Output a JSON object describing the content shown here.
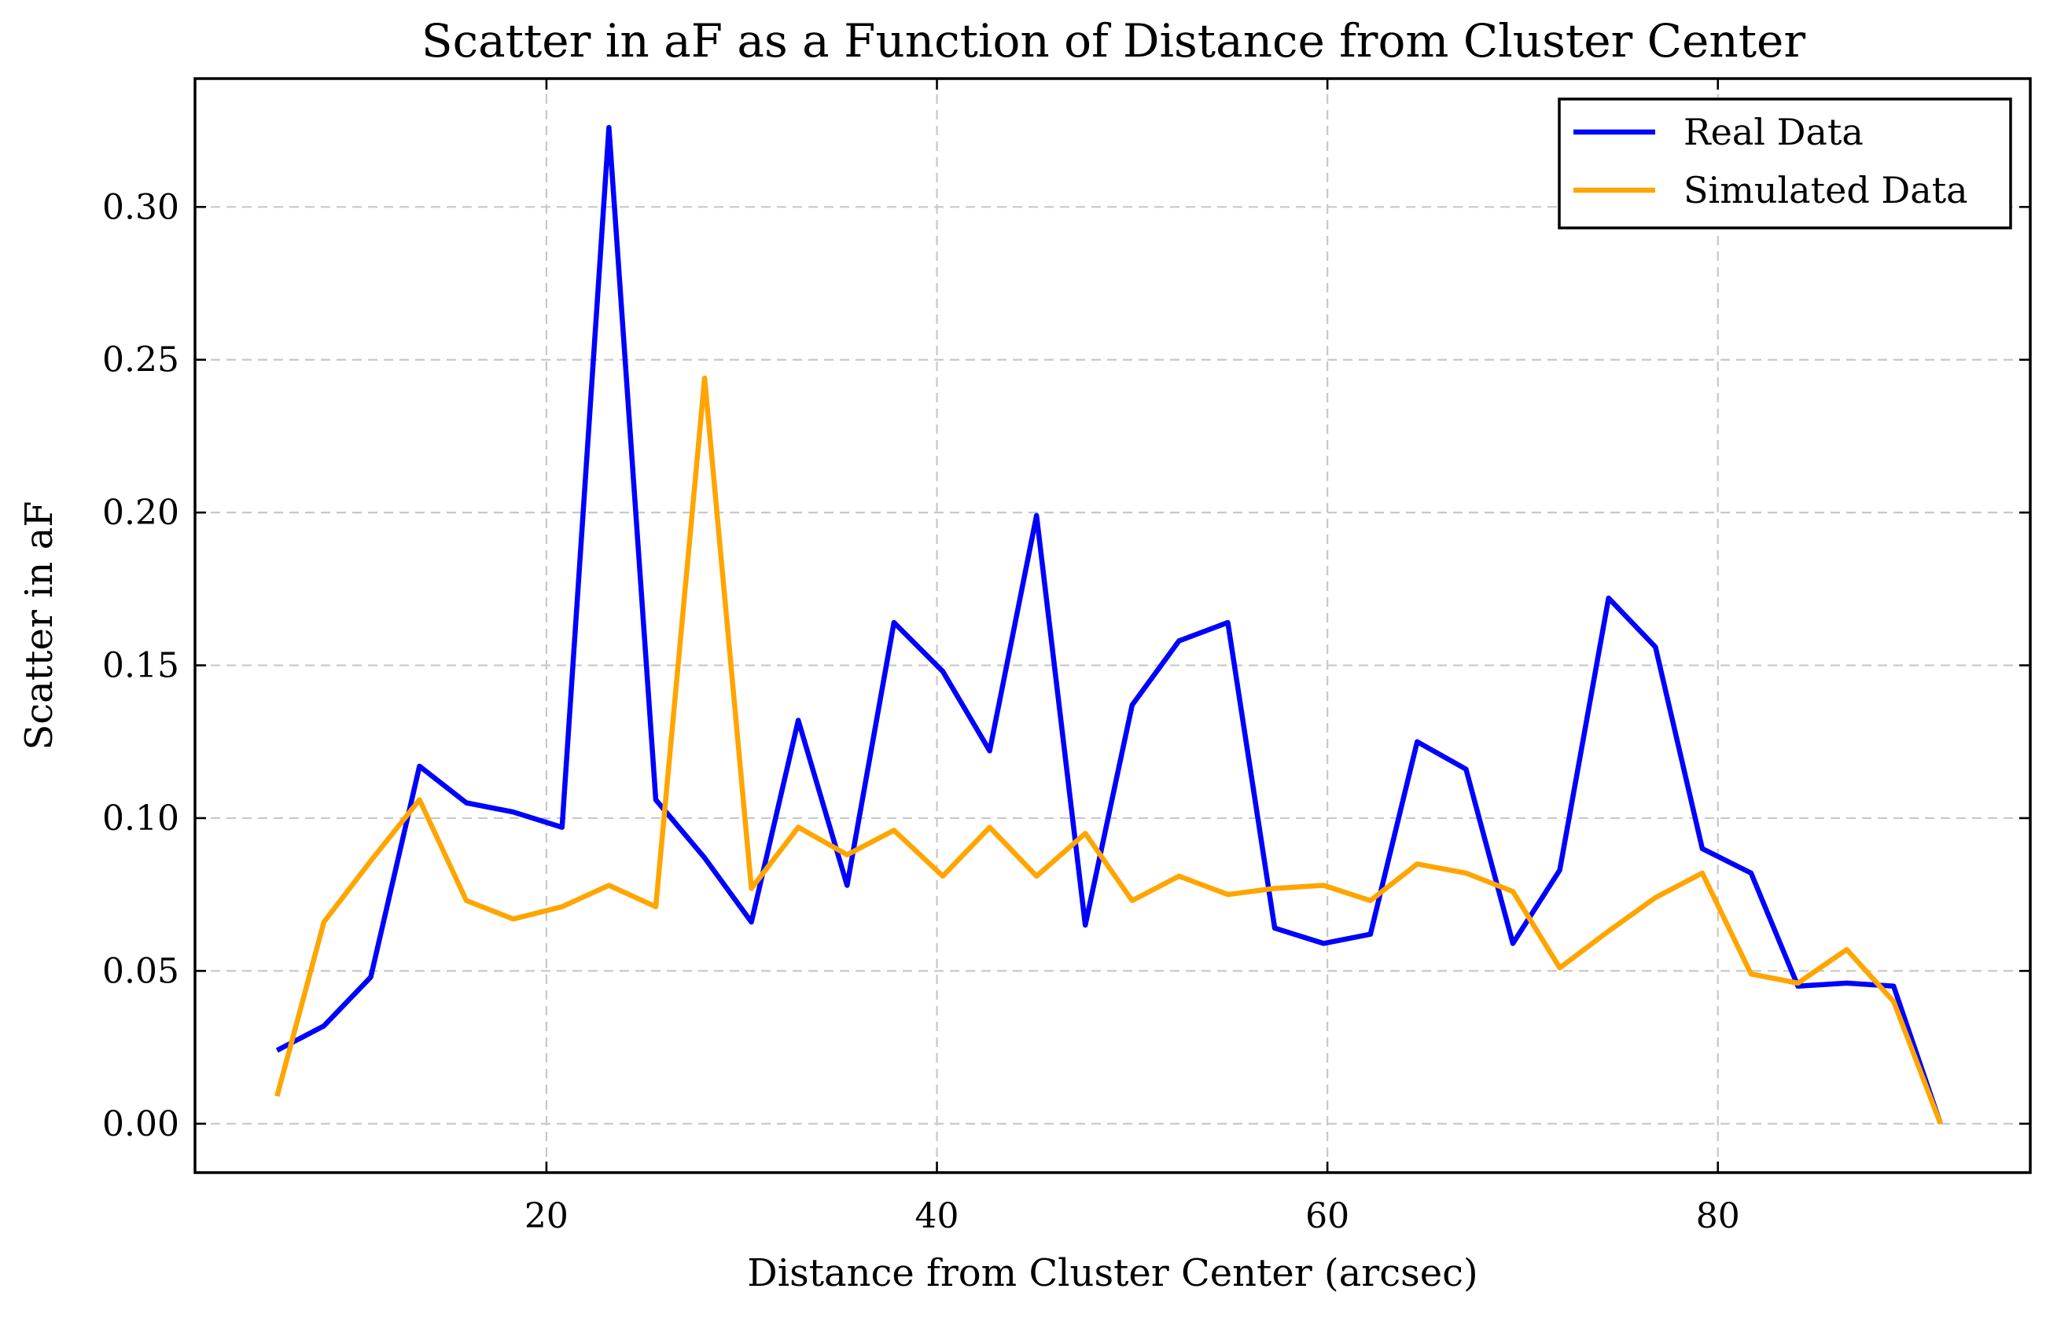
{
  "chart_data": {
    "type": "line",
    "title": "Scatter in aF as a Function of Distance from Cluster Center",
    "xlabel": "Distance from Cluster Center (arcsec)",
    "ylabel": "Scatter in aF",
    "xlim": [
      2,
      96
    ],
    "ylim": [
      -0.016,
      0.342
    ],
    "xticks": [
      20,
      40,
      60,
      80
    ],
    "xtick_labels": [
      "20",
      "40",
      "60",
      "80"
    ],
    "yticks": [
      0.0,
      0.05,
      0.1,
      0.15,
      0.2,
      0.25,
      0.3
    ],
    "ytick_labels": [
      "0.00",
      "0.05",
      "0.10",
      "0.15",
      "0.20",
      "0.25",
      "0.30"
    ],
    "grid": true,
    "grid_style": "dashed",
    "legend_position": "top-right",
    "x": [
      6.2,
      8.6,
      11.0,
      13.5,
      15.9,
      18.3,
      20.8,
      23.2,
      25.6,
      28.1,
      30.5,
      32.9,
      35.4,
      37.8,
      40.3,
      42.7,
      45.1,
      47.6,
      50.0,
      52.4,
      54.9,
      57.3,
      59.8,
      62.2,
      64.6,
      67.1,
      69.5,
      71.9,
      74.4,
      76.8,
      79.2,
      81.7,
      84.1,
      86.6,
      89.0,
      91.4
    ],
    "series": [
      {
        "name": "Real Data",
        "color": "#0000ff",
        "values": [
          0.024,
          0.032,
          0.048,
          0.117,
          0.105,
          0.102,
          0.097,
          0.326,
          0.106,
          0.087,
          0.066,
          0.132,
          0.078,
          0.164,
          0.148,
          0.122,
          0.199,
          0.065,
          0.137,
          0.158,
          0.164,
          0.064,
          0.059,
          0.062,
          0.125,
          0.116,
          0.059,
          0.083,
          0.172,
          0.156,
          0.09,
          0.082,
          0.045,
          0.046,
          0.045,
          0.0
        ]
      },
      {
        "name": "Simulated Data",
        "color": "#ffa500",
        "values": [
          0.009,
          0.066,
          0.086,
          0.106,
          0.073,
          0.067,
          0.071,
          0.078,
          0.071,
          0.244,
          0.077,
          0.097,
          0.088,
          0.096,
          0.081,
          0.097,
          0.081,
          0.095,
          0.073,
          0.081,
          0.075,
          0.077,
          0.078,
          0.073,
          0.085,
          0.082,
          0.076,
          0.051,
          0.063,
          0.074,
          0.082,
          0.049,
          0.046,
          0.057,
          0.04,
          0.0
        ]
      }
    ]
  }
}
